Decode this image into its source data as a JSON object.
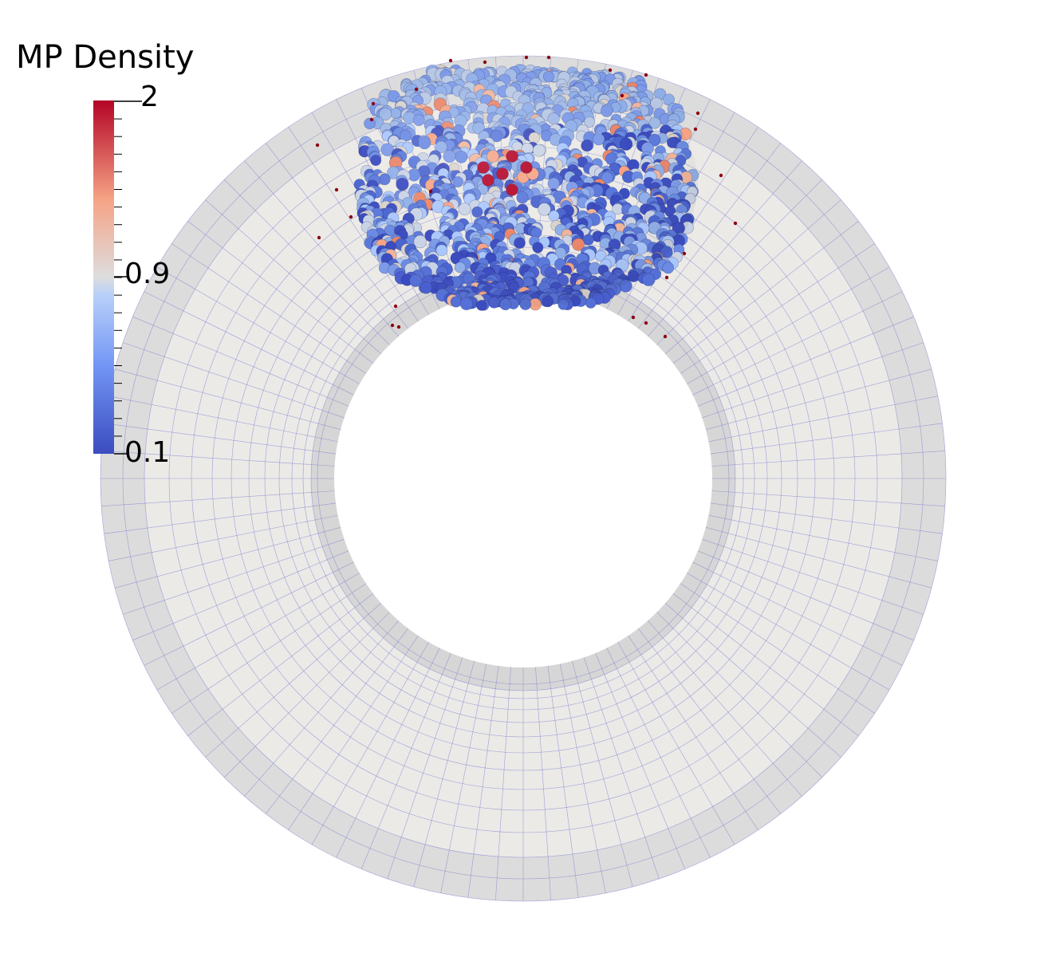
{
  "colorbar": {
    "title": "MP Density",
    "max_label": "2",
    "mid_label": "0.9",
    "min_label": "0.1",
    "range": [
      0.1,
      2
    ],
    "colors": {
      "low": "#3b4cc0",
      "mid_low": "#aac7fd",
      "mid": "#dddddd",
      "mid_high": "#f6a385",
      "high": "#b40426"
    }
  },
  "mesh": {
    "fill": "#ebeae7",
    "shaded_band": "#d9d9d9",
    "grid_line_color": "#8080d0"
  },
  "particles": {
    "stray_color": "#8b0010"
  }
}
